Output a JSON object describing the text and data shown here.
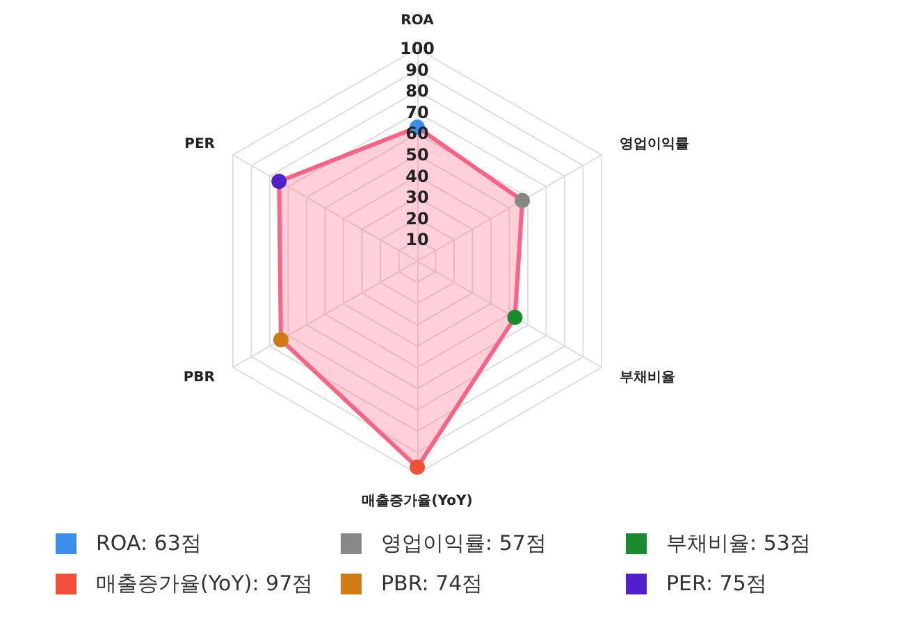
{
  "chart_data": {
    "type": "radar",
    "categories": [
      "ROA",
      "영업이익률",
      "부채비율",
      "매출증가율(YoY)",
      "PBR",
      "PER"
    ],
    "series": [
      {
        "color": "#ff6384",
        "values": [
          63,
          57,
          53,
          97,
          74,
          75
        ]
      }
    ],
    "colors": [
      "#3b8fe8",
      "#888888",
      "#1a8a2e",
      "#f05035",
      "#d07a14",
      "#5020c8"
    ],
    "value_labels": [
      "ROA: 63점",
      "영업이익률: 57점",
      "부채비율: 53점",
      "매출증가율(YoY): 97점",
      "PBR: 74점",
      "PER: 75점"
    ],
    "ylim": [
      0,
      100
    ],
    "yticks": [
      10,
      20,
      30,
      40,
      50,
      60,
      70,
      80,
      90,
      100
    ],
    "grid": true
  }
}
